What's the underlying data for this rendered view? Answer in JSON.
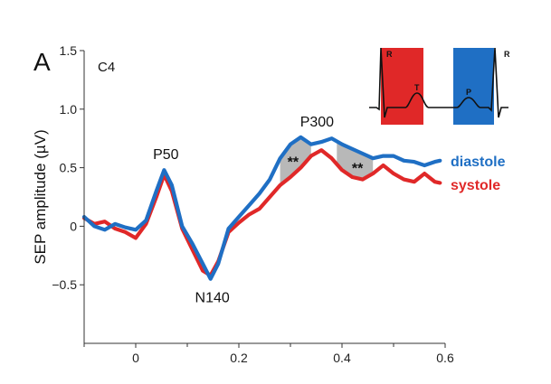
{
  "chart_data": {
    "type": "line",
    "panel_label": "A",
    "electrode_label": "C4",
    "ylabel": "SEP amplitude (µV)",
    "xlabel": "",
    "xlim": [
      -0.1,
      0.6
    ],
    "ylim": [
      -1.0,
      1.5
    ],
    "x_ticks": [
      0,
      0.2,
      0.4,
      0.6
    ],
    "x_tick_labels": [
      "0",
      "0.2",
      "0.4",
      "0.6"
    ],
    "y_ticks": [
      -0.5,
      0,
      0.5,
      1.0,
      1.5
    ],
    "y_tick_labels": [
      "−0.5",
      "0",
      "0.5",
      "1.0",
      "1.5"
    ],
    "series": [
      {
        "name": "diastole",
        "color": "#1f6fc4",
        "points": [
          [
            -0.1,
            0.08
          ],
          [
            -0.08,
            0.0
          ],
          [
            -0.06,
            -0.03
          ],
          [
            -0.04,
            0.02
          ],
          [
            -0.02,
            -0.01
          ],
          [
            0.0,
            -0.03
          ],
          [
            0.02,
            0.05
          ],
          [
            0.04,
            0.3
          ],
          [
            0.055,
            0.48
          ],
          [
            0.07,
            0.35
          ],
          [
            0.09,
            0.0
          ],
          [
            0.11,
            -0.15
          ],
          [
            0.13,
            -0.32
          ],
          [
            0.145,
            -0.45
          ],
          [
            0.16,
            -0.32
          ],
          [
            0.18,
            -0.02
          ],
          [
            0.2,
            0.08
          ],
          [
            0.22,
            0.18
          ],
          [
            0.24,
            0.28
          ],
          [
            0.26,
            0.4
          ],
          [
            0.28,
            0.58
          ],
          [
            0.3,
            0.7
          ],
          [
            0.32,
            0.76
          ],
          [
            0.34,
            0.7
          ],
          [
            0.36,
            0.72
          ],
          [
            0.38,
            0.75
          ],
          [
            0.4,
            0.7
          ],
          [
            0.42,
            0.66
          ],
          [
            0.44,
            0.62
          ],
          [
            0.46,
            0.58
          ],
          [
            0.48,
            0.6
          ],
          [
            0.5,
            0.6
          ],
          [
            0.52,
            0.56
          ],
          [
            0.54,
            0.55
          ],
          [
            0.56,
            0.52
          ],
          [
            0.58,
            0.55
          ],
          [
            0.59,
            0.56
          ]
        ]
      },
      {
        "name": "systole",
        "color": "#e02828",
        "points": [
          [
            -0.1,
            0.07
          ],
          [
            -0.08,
            0.02
          ],
          [
            -0.06,
            0.04
          ],
          [
            -0.04,
            -0.02
          ],
          [
            -0.02,
            -0.05
          ],
          [
            0.0,
            -0.1
          ],
          [
            0.02,
            0.02
          ],
          [
            0.04,
            0.25
          ],
          [
            0.055,
            0.44
          ],
          [
            0.07,
            0.3
          ],
          [
            0.09,
            -0.02
          ],
          [
            0.11,
            -0.2
          ],
          [
            0.13,
            -0.38
          ],
          [
            0.145,
            -0.42
          ],
          [
            0.16,
            -0.3
          ],
          [
            0.18,
            -0.05
          ],
          [
            0.2,
            0.03
          ],
          [
            0.22,
            0.1
          ],
          [
            0.24,
            0.15
          ],
          [
            0.26,
            0.25
          ],
          [
            0.28,
            0.35
          ],
          [
            0.3,
            0.42
          ],
          [
            0.32,
            0.5
          ],
          [
            0.34,
            0.6
          ],
          [
            0.36,
            0.65
          ],
          [
            0.38,
            0.58
          ],
          [
            0.4,
            0.48
          ],
          [
            0.42,
            0.42
          ],
          [
            0.44,
            0.4
          ],
          [
            0.46,
            0.45
          ],
          [
            0.48,
            0.52
          ],
          [
            0.5,
            0.45
          ],
          [
            0.52,
            0.4
          ],
          [
            0.54,
            0.38
          ],
          [
            0.56,
            0.45
          ],
          [
            0.58,
            0.38
          ],
          [
            0.59,
            0.37
          ]
        ]
      }
    ],
    "peak_labels": [
      {
        "text": "P50",
        "x": 0.055,
        "y": 0.48
      },
      {
        "text": "N140",
        "x": 0.145,
        "y": -0.45
      },
      {
        "text": "P300",
        "x": 0.32,
        "y": 0.76
      }
    ],
    "significance_labels": [
      {
        "text": "**",
        "x": 0.305
      },
      {
        "text": "**",
        "x": 0.43
      }
    ],
    "shaded_ranges": [
      [
        0.28,
        0.34
      ],
      [
        0.39,
        0.46
      ]
    ],
    "legend": [
      {
        "text": "diastole",
        "color": "#1f6fc4"
      },
      {
        "text": "systole",
        "color": "#e02828"
      }
    ],
    "legend_position": "right",
    "inset": {
      "labels": [
        "R",
        "T",
        "P",
        "R"
      ],
      "colors": [
        "#e02828",
        "#1f6fc4"
      ]
    }
  }
}
